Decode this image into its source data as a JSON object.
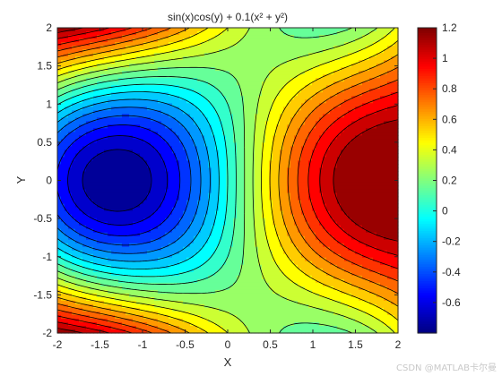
{
  "chart_data": {
    "type": "heatmap",
    "subtype": "filled-contour",
    "title": "sin(x)cos(y) + 0.1(x² + y²)",
    "xlabel": "X",
    "ylabel": "Y",
    "function": "sin(x)cos(y) + 0.1(x^2 + y^2)",
    "xlim": [
      -2,
      2
    ],
    "ylim": [
      -2,
      2
    ],
    "x_ticks": [
      -2,
      -1.5,
      -1,
      -0.5,
      0,
      0.5,
      1,
      1.5,
      2
    ],
    "x_tick_labels": [
      "-2",
      "-1.5",
      "-1",
      "-0.5",
      "0",
      "0.5",
      "1",
      "1.5",
      "2"
    ],
    "y_ticks": [
      -2,
      -1.5,
      -1,
      -0.5,
      0,
      0.5,
      1,
      1.5,
      2
    ],
    "y_tick_labels": [
      "-2",
      "-1.5",
      "-1",
      "-0.5",
      "0",
      "0.5",
      "1",
      "1.5",
      "2"
    ],
    "colormap": "jet",
    "colorbar": {
      "placement": "right",
      "range": [
        -0.8,
        1.2
      ],
      "ticks": [
        -0.6,
        -0.4,
        -0.2,
        0,
        0.2,
        0.4,
        0.6,
        0.8,
        1,
        1.2
      ],
      "tick_labels": [
        "-0.6",
        "-0.4",
        "-0.2",
        "0",
        "0.2",
        "0.4",
        "0.6",
        "0.8",
        "1",
        "1.2"
      ]
    },
    "value_range": [
      -0.8,
      1.2
    ],
    "grid": false
  },
  "watermark": "CSDN @MATLAB卡尔曼"
}
